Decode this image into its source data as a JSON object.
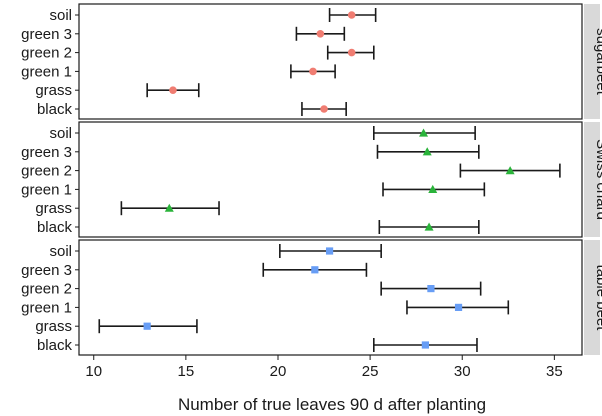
{
  "chart_data": {
    "type": "scatter",
    "subtype": "dot-errorbar-faceted",
    "xlabel": "Number of true leaves 90 d after planting",
    "ylabel": "",
    "xlim": [
      9.2,
      36.5
    ],
    "xticks": [
      10,
      15,
      20,
      25,
      30,
      35
    ],
    "grid": false,
    "legend": "none",
    "categories": [
      "soil",
      "green 3",
      "green 2",
      "green 1",
      "grass",
      "black"
    ],
    "panels": [
      {
        "name": "sugarbeet",
        "color": "#f07d72",
        "marker": "circle",
        "points": [
          {
            "category": "soil",
            "mean": 24.0,
            "low": 22.8,
            "high": 25.3
          },
          {
            "category": "green 3",
            "mean": 22.3,
            "low": 21.0,
            "high": 23.6
          },
          {
            "category": "green 2",
            "mean": 24.0,
            "low": 22.7,
            "high": 25.2
          },
          {
            "category": "green 1",
            "mean": 21.9,
            "low": 20.7,
            "high": 23.1
          },
          {
            "category": "grass",
            "mean": 14.3,
            "low": 12.9,
            "high": 15.7
          },
          {
            "category": "black",
            "mean": 22.5,
            "low": 21.3,
            "high": 23.7
          }
        ]
      },
      {
        "name": "Swiss chard",
        "color": "#2ab33a",
        "marker": "triangle",
        "points": [
          {
            "category": "soil",
            "mean": 27.9,
            "low": 25.2,
            "high": 30.7
          },
          {
            "category": "green 3",
            "mean": 28.1,
            "low": 25.4,
            "high": 30.9
          },
          {
            "category": "green 2",
            "mean": 32.6,
            "low": 29.9,
            "high": 35.3
          },
          {
            "category": "green 1",
            "mean": 28.4,
            "low": 25.7,
            "high": 31.2
          },
          {
            "category": "grass",
            "mean": 14.1,
            "low": 11.5,
            "high": 16.8
          },
          {
            "category": "black",
            "mean": 28.2,
            "low": 25.5,
            "high": 30.9
          }
        ]
      },
      {
        "name": "table beet",
        "color": "#679df5",
        "marker": "square",
        "points": [
          {
            "category": "soil",
            "mean": 22.8,
            "low": 20.1,
            "high": 25.6
          },
          {
            "category": "green 3",
            "mean": 22.0,
            "low": 19.2,
            "high": 24.8
          },
          {
            "category": "green 2",
            "mean": 28.3,
            "low": 25.6,
            "high": 31.0
          },
          {
            "category": "green 1",
            "mean": 29.8,
            "low": 27.0,
            "high": 32.5
          },
          {
            "category": "grass",
            "mean": 12.9,
            "low": 10.3,
            "high": 15.6
          },
          {
            "category": "black",
            "mean": 28.0,
            "low": 25.2,
            "high": 30.8
          }
        ]
      }
    ]
  }
}
